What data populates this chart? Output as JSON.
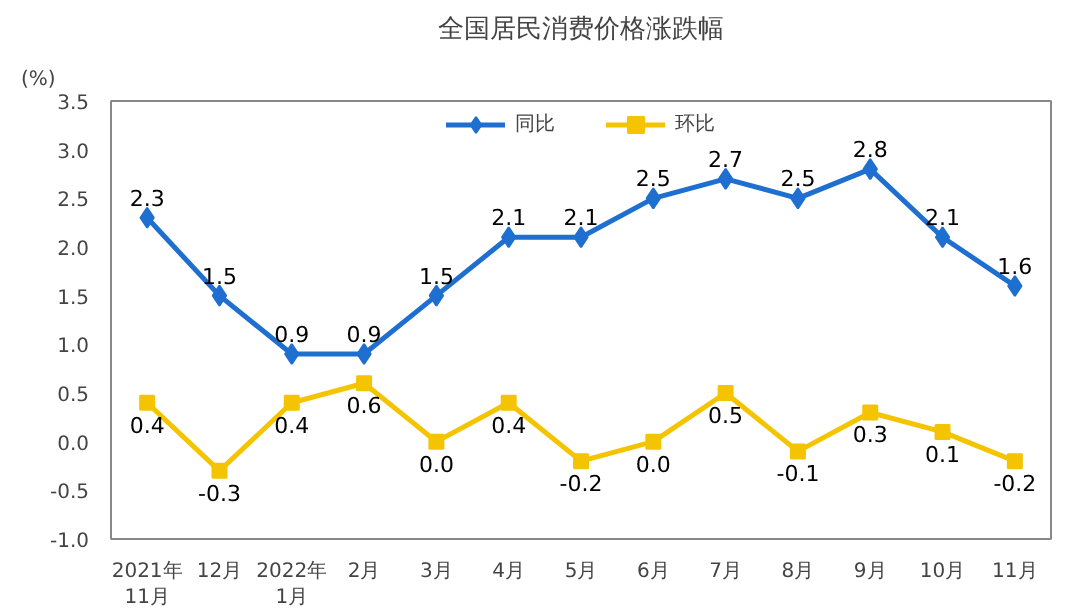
{
  "chart_data": {
    "type": "line",
    "title": "全国居民消费价格涨跌幅",
    "ylabel": "(%)",
    "categories": [
      "2021年\n11月",
      "12月",
      "2022年\n1月",
      "2月",
      "3月",
      "4月",
      "5月",
      "6月",
      "7月",
      "8月",
      "9月",
      "10月",
      "11月"
    ],
    "series": [
      {
        "name": "同比",
        "color": "#1f6fd1",
        "marker": "diamond",
        "values": [
          2.3,
          1.5,
          0.9,
          0.9,
          1.5,
          2.1,
          2.1,
          2.5,
          2.7,
          2.5,
          2.8,
          2.1,
          1.6
        ],
        "value_labels": [
          "2.3",
          "1.5",
          "0.9",
          "0.9",
          "1.5",
          "2.1",
          "2.1",
          "2.5",
          "2.7",
          "2.5",
          "2.8",
          "2.1",
          "1.6"
        ]
      },
      {
        "name": "环比",
        "color": "#f5c400",
        "marker": "square",
        "values": [
          0.4,
          -0.3,
          0.4,
          0.6,
          0.0,
          0.4,
          -0.2,
          0.0,
          0.5,
          -0.1,
          0.3,
          0.1,
          -0.2
        ],
        "value_labels": [
          "0.4",
          "-0.3",
          "0.4",
          "0.6",
          "0.0",
          "0.4",
          "-0.2",
          "0.0",
          "0.5",
          "-0.1",
          "0.3",
          "0.1",
          "-0.2"
        ]
      }
    ],
    "ylim": [
      -1.0,
      3.5
    ],
    "yticks": [
      {
        "value": -1.0,
        "label": "-1.0"
      },
      {
        "value": -0.5,
        "label": "-0.5"
      },
      {
        "value": 0,
        "label": "0.0"
      },
      {
        "value": 0.5,
        "label": "0.5"
      },
      {
        "value": 1.0,
        "label": "1.0"
      },
      {
        "value": 1.5,
        "label": "1.5"
      },
      {
        "value": 2.0,
        "label": "2.0"
      },
      {
        "value": 2.5,
        "label": "2.5"
      },
      {
        "value": 3.0,
        "label": "3.0"
      },
      {
        "value": 3.5,
        "label": "3.5"
      }
    ],
    "grid": false,
    "legend": "top",
    "line_style": "solid"
  }
}
